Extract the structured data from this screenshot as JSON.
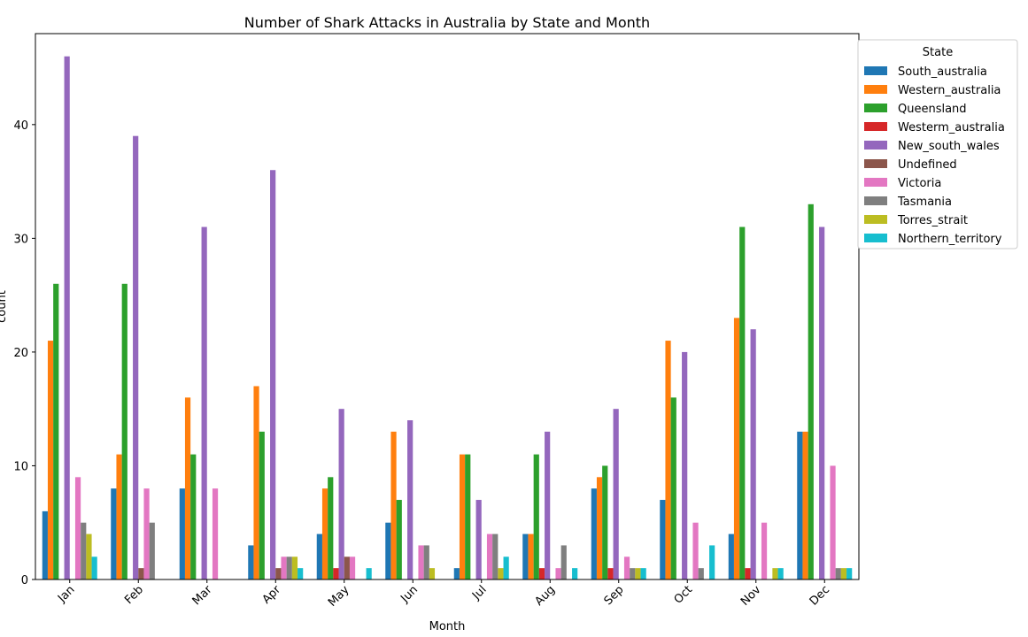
{
  "chart_data": {
    "type": "bar",
    "title": "Number of Shark Attacks in Australia by State and Month",
    "xlabel": "Month",
    "ylabel": "count",
    "ylim": [
      0,
      48
    ],
    "yticks": [
      0,
      10,
      20,
      30,
      40
    ],
    "grid": false,
    "legend_title": "State",
    "legend_position": "right, outside plot",
    "categories": [
      "Jan",
      "Feb",
      "Mar",
      "Apr",
      "May",
      "Jun",
      "Jul",
      "Aug",
      "Sep",
      "Oct",
      "Nov",
      "Dec"
    ],
    "series": [
      {
        "name": "South_australia",
        "color": "#1f77b4",
        "values": [
          6,
          8,
          8,
          3,
          4,
          5,
          1,
          4,
          8,
          7,
          4,
          13
        ]
      },
      {
        "name": "Western_australia",
        "color": "#ff7f0e",
        "values": [
          21,
          11,
          16,
          17,
          8,
          13,
          11,
          4,
          9,
          21,
          23,
          13
        ]
      },
      {
        "name": "Queensland",
        "color": "#2ca02c",
        "values": [
          26,
          26,
          11,
          13,
          9,
          7,
          11,
          11,
          10,
          16,
          31,
          33
        ]
      },
      {
        "name": "Westerm_australia",
        "color": "#d62728",
        "values": [
          0,
          0,
          0,
          0,
          1,
          0,
          0,
          1,
          1,
          0,
          1,
          0
        ]
      },
      {
        "name": "New_south_wales",
        "color": "#9467bd",
        "values": [
          46,
          39,
          31,
          36,
          15,
          14,
          7,
          13,
          15,
          20,
          22,
          31
        ]
      },
      {
        "name": "Undefined",
        "color": "#8c564b",
        "values": [
          0,
          1,
          0,
          1,
          2,
          0,
          0,
          0,
          0,
          0,
          0,
          0
        ]
      },
      {
        "name": "Victoria",
        "color": "#e377c2",
        "values": [
          9,
          8,
          8,
          2,
          2,
          3,
          4,
          1,
          2,
          5,
          5,
          10
        ]
      },
      {
        "name": "Tasmania",
        "color": "#7f7f7f",
        "values": [
          5,
          5,
          0,
          2,
          0,
          3,
          4,
          3,
          1,
          1,
          0,
          1
        ]
      },
      {
        "name": "Torres_strait",
        "color": "#bcbd22",
        "values": [
          4,
          0,
          0,
          2,
          0,
          1,
          1,
          0,
          1,
          0,
          1,
          1
        ]
      },
      {
        "name": "Northern_territory",
        "color": "#17becf",
        "values": [
          2,
          0,
          0,
          1,
          1,
          0,
          2,
          1,
          1,
          3,
          1,
          1
        ]
      }
    ]
  }
}
